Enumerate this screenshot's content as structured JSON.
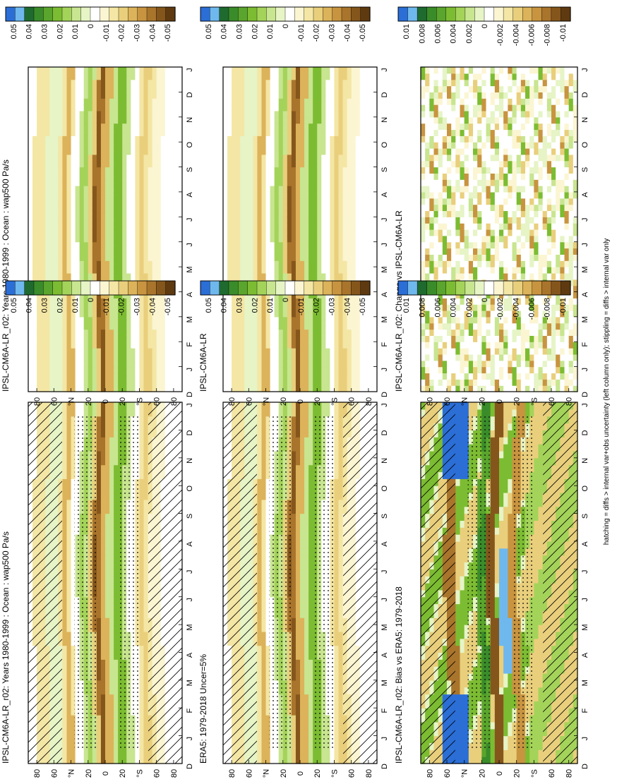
{
  "figure": {
    "footnote": "hatching = diffs > internal var+obs uncertainty (left column only); stippling = diffs > internal var only"
  },
  "axes": {
    "month_ticks": [
      "D",
      "J",
      "F",
      "M",
      "A",
      "M",
      "J",
      "J",
      "A",
      "S",
      "O",
      "N",
      "D",
      "J"
    ],
    "lat_ticks": [
      "80",
      "60",
      "°N",
      "20",
      "0",
      "20",
      "°S",
      "60",
      "80"
    ]
  },
  "colorbars": {
    "main": [
      "0.05",
      "0.04",
      "0.03",
      "0.02",
      "0.01",
      "0",
      "-0.01",
      "-0.02",
      "-0.03",
      "-0.04",
      "-0.05"
    ],
    "diff": [
      "0.01",
      "0.008",
      "0.006",
      "0.004",
      "0.002",
      "0",
      "-0.002",
      "-0.004",
      "-0.006",
      "-0.008",
      "-0.01"
    ]
  },
  "colors": {
    "palette": [
      "#2b6ed6",
      "#6fb8ee",
      "#1f6a2e",
      "#3a8c2a",
      "#5aa52d",
      "#7cbc32",
      "#a4d35a",
      "#c8e590",
      "#e6f4c6",
      "#ffffff",
      "#fbf5d2",
      "#f4e6a4",
      "#e9cf7c",
      "#dcb35a",
      "#c89440",
      "#a9742c",
      "#85561c",
      "#5f3a10"
    ]
  },
  "panels": [
    {
      "id": "tl",
      "title": "IPSL-CM6A-LR_r02: Years 1980-1999 : Ocean : wap500 Pa/s",
      "kind": "clim",
      "colorbar": "main",
      "hatch": true,
      "stipple": true
    },
    {
      "id": "tr",
      "title": "IPSL-CM6A-LR_r02: Years 1980-1999 : Ocean : wap500 Pa/s",
      "kind": "clim",
      "colorbar": "main",
      "hatch": false,
      "stipple": false
    },
    {
      "id": "ml",
      "title": "ERA5: 1979-2018 Uncer=5%",
      "kind": "clim",
      "colorbar": "main",
      "hatch": true,
      "stipple": true
    },
    {
      "id": "mr",
      "title": "IPSL-CM6A-LR",
      "kind": "clim",
      "colorbar": "main",
      "hatch": false,
      "stipple": false
    },
    {
      "id": "bl",
      "title": "IPSL-CM6A-LR_r02: Bias vs ERA5: 1979-2018",
      "kind": "bias",
      "colorbar": "diff",
      "hatch": true,
      "stipple": true
    },
    {
      "id": "br",
      "title": "IPSL-CM6A-LR_r02: Change vs IPSL-CM6A-LR",
      "kind": "change",
      "colorbar": "diff",
      "hatch": false,
      "stipple": false
    }
  ],
  "chart_data": {
    "type": "heatmap",
    "x": [
      "D",
      "J",
      "F",
      "M",
      "A",
      "M",
      "J",
      "J",
      "A",
      "S",
      "O",
      "N",
      "D",
      "J"
    ],
    "y": [
      "80",
      "60",
      "°N",
      "20",
      "0",
      "20",
      "°S",
      "60",
      "80"
    ],
    "colorbar_ticks_main": [
      "0.05",
      "0.04",
      "0.03",
      "0.02",
      "0.01",
      "0",
      "-0.01",
      "-0.02",
      "-0.03",
      "-0.04",
      "-0.05"
    ],
    "colorbar_ticks_diff": [
      "0.01",
      "0.008",
      "0.006",
      "0.004",
      "0.002",
      "0",
      "-0.002",
      "-0.004",
      "-0.006",
      "-0.008",
      "-0.01"
    ]
  }
}
